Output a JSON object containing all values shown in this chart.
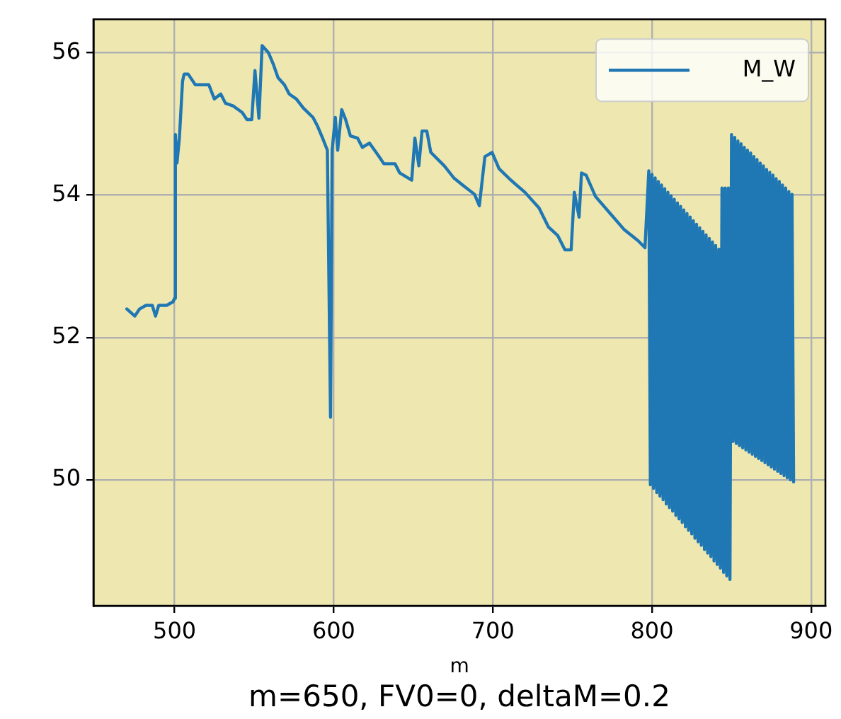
{
  "chart_data": {
    "type": "line",
    "xlabel": "m",
    "annotations": [
      "m=650, FV0=0, deltaM=0.2"
    ],
    "xlim": [
      449,
      909
    ],
    "ylim": [
      48.23,
      56.47
    ],
    "xticks": [
      500,
      600,
      700,
      800,
      900
    ],
    "yticks": [
      50,
      52,
      54,
      56
    ],
    "grid": true,
    "legend": "top right",
    "marker": "none",
    "line_style": "solid",
    "series": [
      {
        "name": "M_W",
        "color": "#1f77b4",
        "x": [
          470,
          472,
          475,
          478,
          482,
          486,
          488,
          490,
          495,
          499,
          500,
          500.5,
          501.5,
          503,
          505,
          506,
          508.5,
          513,
          521.5,
          525,
          529,
          532,
          537,
          542.5,
          545.5,
          548.5,
          550.5,
          553,
          555,
          559,
          562,
          565,
          569,
          572,
          576.5,
          581,
          587,
          590,
          593,
          596,
          598,
          599,
          601,
          602.5,
          605,
          607.5,
          610.5,
          615,
          618,
          622.5,
          628.5,
          631.5,
          638.5,
          641.5,
          649,
          651,
          653.5,
          655.5,
          658.5,
          661,
          669.5,
          675.5,
          681,
          688.5,
          691.5,
          695,
          699.5,
          703.9,
          711.3,
          720.1,
          729,
          735,
          740.8,
          745.3,
          749.2,
          751.2,
          754.2,
          755.7,
          758.6,
          764.5,
          773.4,
          782.3,
          791.2,
          795.6,
          798,
          799,
          800,
          801,
          802,
          803,
          804,
          805,
          806,
          807,
          808,
          809,
          810,
          811,
          812,
          813,
          814,
          815,
          816,
          817,
          818,
          819,
          820,
          821,
          822,
          823,
          824,
          825,
          826,
          827,
          828,
          829,
          830,
          831,
          832,
          833,
          834,
          835,
          836,
          837,
          838,
          839,
          840,
          841,
          842,
          843,
          844,
          845,
          846,
          847,
          848,
          849,
          850,
          851,
          852,
          853,
          854,
          855,
          856,
          857,
          858,
          859,
          860,
          861,
          862,
          863,
          864,
          865,
          866,
          867,
          868,
          869,
          870,
          871,
          872,
          873,
          874,
          875,
          876,
          877,
          878,
          879,
          880,
          881,
          882,
          883,
          884,
          885,
          886,
          887,
          888,
          889
        ],
        "values": [
          52.4,
          52.36,
          52.3,
          52.4,
          52.45,
          52.45,
          52.3,
          52.45,
          52.45,
          52.5,
          52.55,
          54.85,
          54.45,
          54.8,
          55.6,
          55.7,
          55.7,
          55.55,
          55.55,
          55.35,
          55.42,
          55.29,
          55.25,
          55.16,
          55.06,
          55.06,
          55.75,
          55.08,
          56.1,
          56.0,
          55.84,
          55.65,
          55.55,
          55.42,
          55.35,
          55.22,
          55.09,
          54.96,
          54.8,
          54.63,
          50.88,
          54.63,
          55.09,
          54.63,
          55.2,
          55.06,
          54.83,
          54.8,
          54.67,
          54.73,
          54.54,
          54.44,
          54.44,
          54.31,
          54.21,
          54.8,
          54.41,
          54.9,
          54.9,
          54.6,
          54.41,
          54.24,
          54.14,
          54.01,
          53.85,
          54.54,
          54.6,
          54.37,
          54.21,
          54.04,
          53.82,
          53.55,
          53.43,
          53.23,
          53.23,
          54.04,
          53.69,
          54.31,
          54.28,
          53.98,
          53.75,
          53.52,
          53.36,
          53.26,
          54.34,
          49.93,
          54.29,
          49.88,
          54.24,
          49.82,
          54.19,
          49.77,
          54.14,
          49.72,
          54.09,
          49.66,
          54.04,
          49.61,
          53.99,
          49.56,
          53.94,
          49.5,
          53.89,
          49.45,
          53.84,
          49.4,
          53.79,
          49.34,
          53.74,
          49.29,
          53.69,
          49.24,
          53.64,
          49.18,
          53.59,
          49.13,
          53.54,
          49.08,
          53.49,
          49.02,
          53.44,
          48.97,
          53.39,
          48.92,
          53.34,
          48.86,
          53.29,
          48.81,
          53.24,
          48.76,
          54.1,
          48.7,
          54.1,
          48.65,
          54.1,
          48.6,
          54.85,
          50.54,
          54.81,
          50.51,
          54.76,
          50.48,
          54.72,
          50.45,
          54.67,
          50.42,
          54.63,
          50.39,
          54.59,
          50.36,
          54.54,
          50.33,
          54.5,
          50.3,
          54.45,
          50.27,
          54.41,
          50.24,
          54.36,
          50.21,
          54.32,
          50.18,
          54.28,
          50.15,
          54.23,
          50.12,
          54.19,
          50.09,
          54.14,
          50.06,
          54.1,
          50.03,
          54.05,
          50.0,
          54.01,
          49.97
        ]
      }
    ]
  }
}
